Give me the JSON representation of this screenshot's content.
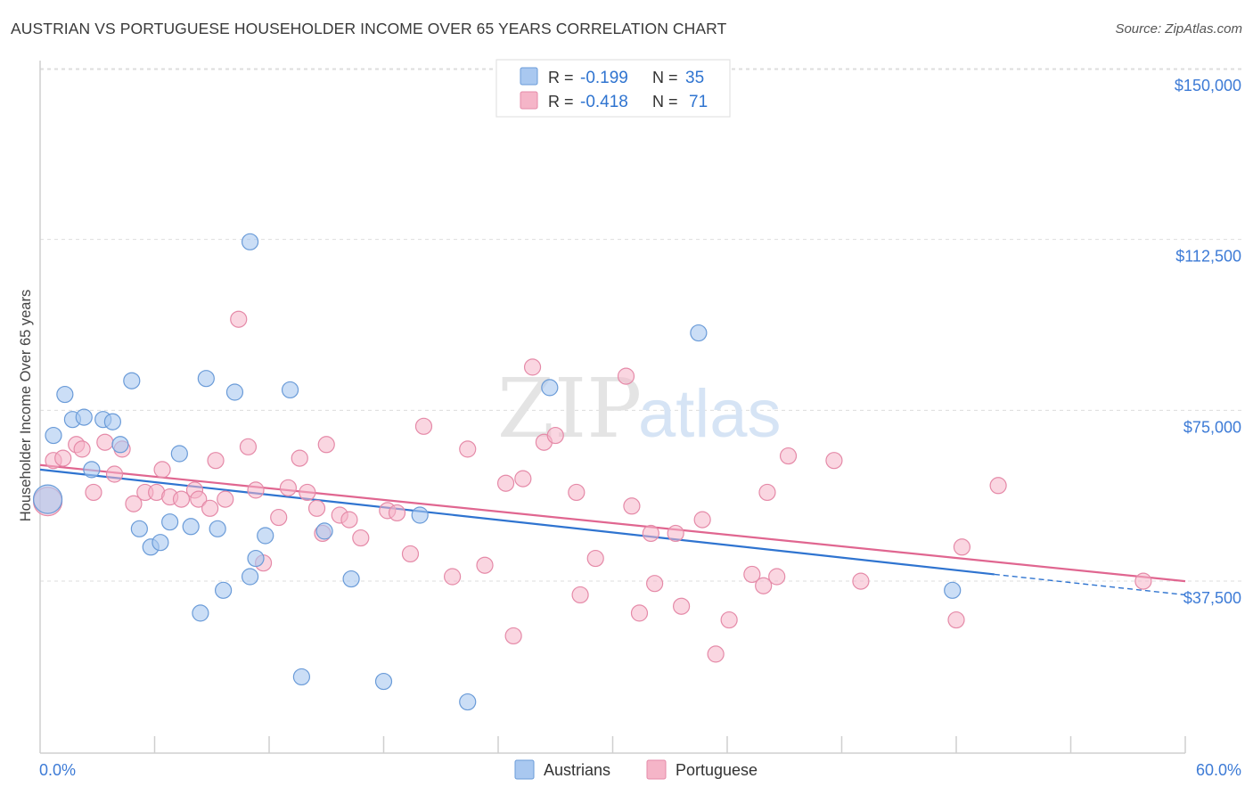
{
  "title": "AUSTRIAN VS PORTUGUESE HOUSEHOLDER INCOME OVER 65 YEARS CORRELATION CHART",
  "source": "Source: ZipAtlas.com",
  "watermark": {
    "zip": "ZIP",
    "atlas": "atlas"
  },
  "legend_stats": [
    {
      "r_label": "R =",
      "r_value": "-0.199",
      "n_label": "N =",
      "n_value": "35",
      "color": "#a9c8f0"
    },
    {
      "r_label": "R =",
      "r_value": "-0.418",
      "n_label": "N =",
      "n_value": "71",
      "color": "#f5b5c8"
    }
  ],
  "bottom_legend": [
    {
      "label": "Austrians",
      "color": "#a9c8f0"
    },
    {
      "label": "Portuguese",
      "color": "#f5b5c8"
    }
  ],
  "colors": {
    "austrians_fill": "#a9c8f0",
    "austrians_stroke": "#6a9bd8",
    "austrians_line": "#2f74d0",
    "portuguese_fill": "#f5b5c8",
    "portuguese_stroke": "#e58aa8",
    "portuguese_line": "#e06690",
    "tick_label": "#3d7bd6",
    "grid": "#dddddd"
  },
  "chart_data": {
    "type": "scatter",
    "title": "AUSTRIAN VS PORTUGUESE HOUSEHOLDER INCOME OVER 65 YEARS CORRELATION CHART",
    "xlabel": "",
    "ylabel": "Householder Income Over 65 years",
    "xlim": [
      0,
      60
    ],
    "ylim": [
      0,
      150000
    ],
    "x_tick_labels": [
      "0.0%",
      "60.0%"
    ],
    "y_ticks": [
      37500,
      75000,
      112500,
      150000
    ],
    "y_tick_labels": [
      "$37,500",
      "$75,000",
      "$112,500",
      "$150,000"
    ],
    "grid": true,
    "legend_position": "top-center",
    "series": [
      {
        "name": "Austrians",
        "points": [
          [
            0.4,
            59000
          ],
          [
            0.7,
            73000
          ],
          [
            1.3,
            82000
          ],
          [
            1.7,
            76500
          ],
          [
            2.3,
            77000
          ],
          [
            2.7,
            65500
          ],
          [
            3.3,
            76500
          ],
          [
            3.8,
            76000
          ],
          [
            4.2,
            71000
          ],
          [
            4.8,
            85000
          ],
          [
            5.2,
            52500
          ],
          [
            5.8,
            48500
          ],
          [
            6.3,
            49500
          ],
          [
            6.8,
            54000
          ],
          [
            7.3,
            69000
          ],
          [
            7.9,
            53000
          ],
          [
            8.4,
            34000
          ],
          [
            8.7,
            85500
          ],
          [
            9.3,
            52500
          ],
          [
            9.6,
            39000
          ],
          [
            10.2,
            82500
          ],
          [
            11.0,
            115500
          ],
          [
            11.3,
            46000
          ],
          [
            11.0,
            42000
          ],
          [
            11.8,
            51000
          ],
          [
            13.1,
            83000
          ],
          [
            13.7,
            20000
          ],
          [
            14.9,
            52000
          ],
          [
            16.3,
            41500
          ],
          [
            18.0,
            19000
          ],
          [
            19.9,
            55500
          ],
          [
            22.4,
            14500
          ],
          [
            26.7,
            83500
          ],
          [
            34.5,
            95500
          ],
          [
            47.8,
            39000
          ]
        ],
        "trend": {
          "x": [
            0,
            50
          ],
          "y": [
            65500,
            42500
          ],
          "dashed_to": [
            60,
            38000
          ]
        }
      },
      {
        "name": "Portuguese",
        "points": [
          [
            0.4,
            58500
          ],
          [
            0.7,
            67500
          ],
          [
            1.2,
            68000
          ],
          [
            1.9,
            71000
          ],
          [
            2.2,
            70000
          ],
          [
            2.8,
            60500
          ],
          [
            3.4,
            71500
          ],
          [
            3.9,
            64500
          ],
          [
            4.3,
            70000
          ],
          [
            4.9,
            58000
          ],
          [
            5.5,
            60500
          ],
          [
            6.1,
            60500
          ],
          [
            6.4,
            65500
          ],
          [
            6.8,
            59500
          ],
          [
            7.4,
            59000
          ],
          [
            8.1,
            61000
          ],
          [
            8.3,
            59000
          ],
          [
            8.9,
            57000
          ],
          [
            9.2,
            67500
          ],
          [
            9.7,
            59000
          ],
          [
            10.4,
            98500
          ],
          [
            10.9,
            70500
          ],
          [
            11.3,
            61000
          ],
          [
            11.7,
            45000
          ],
          [
            12.5,
            55000
          ],
          [
            13.0,
            61500
          ],
          [
            13.6,
            68000
          ],
          [
            14.0,
            60500
          ],
          [
            14.5,
            57000
          ],
          [
            14.8,
            51500
          ],
          [
            15.0,
            71000
          ],
          [
            15.7,
            55500
          ],
          [
            16.2,
            54500
          ],
          [
            16.8,
            50500
          ],
          [
            18.2,
            56500
          ],
          [
            18.7,
            56000
          ],
          [
            19.4,
            47000
          ],
          [
            20.1,
            75000
          ],
          [
            21.6,
            42000
          ],
          [
            22.4,
            70000
          ],
          [
            23.3,
            44500
          ],
          [
            24.4,
            62500
          ],
          [
            24.8,
            29000
          ],
          [
            25.3,
            63500
          ],
          [
            25.8,
            88000
          ],
          [
            26.4,
            71500
          ],
          [
            27.0,
            73000
          ],
          [
            28.1,
            60500
          ],
          [
            28.3,
            38000
          ],
          [
            29.1,
            46000
          ],
          [
            30.7,
            86000
          ],
          [
            31.0,
            57500
          ],
          [
            31.4,
            34000
          ],
          [
            32.0,
            51500
          ],
          [
            32.2,
            40500
          ],
          [
            33.3,
            51500
          ],
          [
            33.6,
            35500
          ],
          [
            34.7,
            54500
          ],
          [
            35.4,
            25000
          ],
          [
            36.1,
            32500
          ],
          [
            37.3,
            42500
          ],
          [
            37.9,
            40000
          ],
          [
            38.1,
            60500
          ],
          [
            38.6,
            42000
          ],
          [
            39.2,
            68500
          ],
          [
            41.6,
            67500
          ],
          [
            43.0,
            41000
          ],
          [
            48.0,
            32500
          ],
          [
            48.3,
            48500
          ],
          [
            50.2,
            62000
          ],
          [
            57.8,
            41000
          ]
        ],
        "trend": {
          "x": [
            0,
            60
          ],
          "y": [
            66500,
            41000
          ]
        }
      }
    ]
  }
}
